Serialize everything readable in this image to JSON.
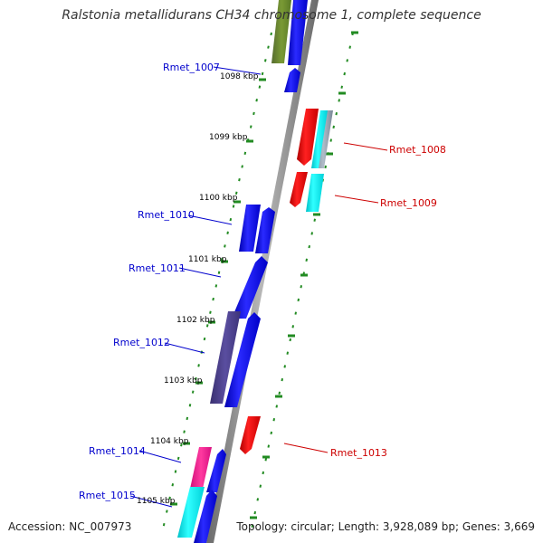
{
  "title": "Ralstonia metallidurans CH34 chromosome 1, complete sequence",
  "footer": {
    "accession": "Accession: NC_007973",
    "topology": "Topology: circular; Length: 3,928,089 bp; Genes: 3,669"
  },
  "kbp_labels": [
    "1098 kbp",
    "1099 kbp",
    "1100 kbp",
    "1101 kbp",
    "1102 kbp",
    "1103 kbp",
    "1104 kbp",
    "1105 kbp"
  ],
  "gene_labels": [
    {
      "text": "Rmet_1007",
      "strand": "forward"
    },
    {
      "text": "Rmet_1008",
      "strand": "reverse"
    },
    {
      "text": "Rmet_1009",
      "strand": "reverse"
    },
    {
      "text": "Rmet_1010",
      "strand": "forward"
    },
    {
      "text": "Rmet_1011",
      "strand": "forward"
    },
    {
      "text": "Rmet_1012",
      "strand": "forward"
    },
    {
      "text": "Rmet_1013",
      "strand": "reverse"
    },
    {
      "text": "Rmet_1014",
      "strand": "forward"
    },
    {
      "text": "Rmet_1015",
      "strand": "forward"
    }
  ],
  "colors": {
    "forward_gene": "#0000ee",
    "reverse_gene": "#ee0000",
    "olive": "#6b8e23",
    "cyan": "#00e5ee",
    "purple": "#483d8b",
    "pink": "#ee1289",
    "steel": "#5f9ea0",
    "backbone": "#808080",
    "tick": "#228b22",
    "forward_label": "#0000cd",
    "reverse_label": "#cd0000"
  }
}
